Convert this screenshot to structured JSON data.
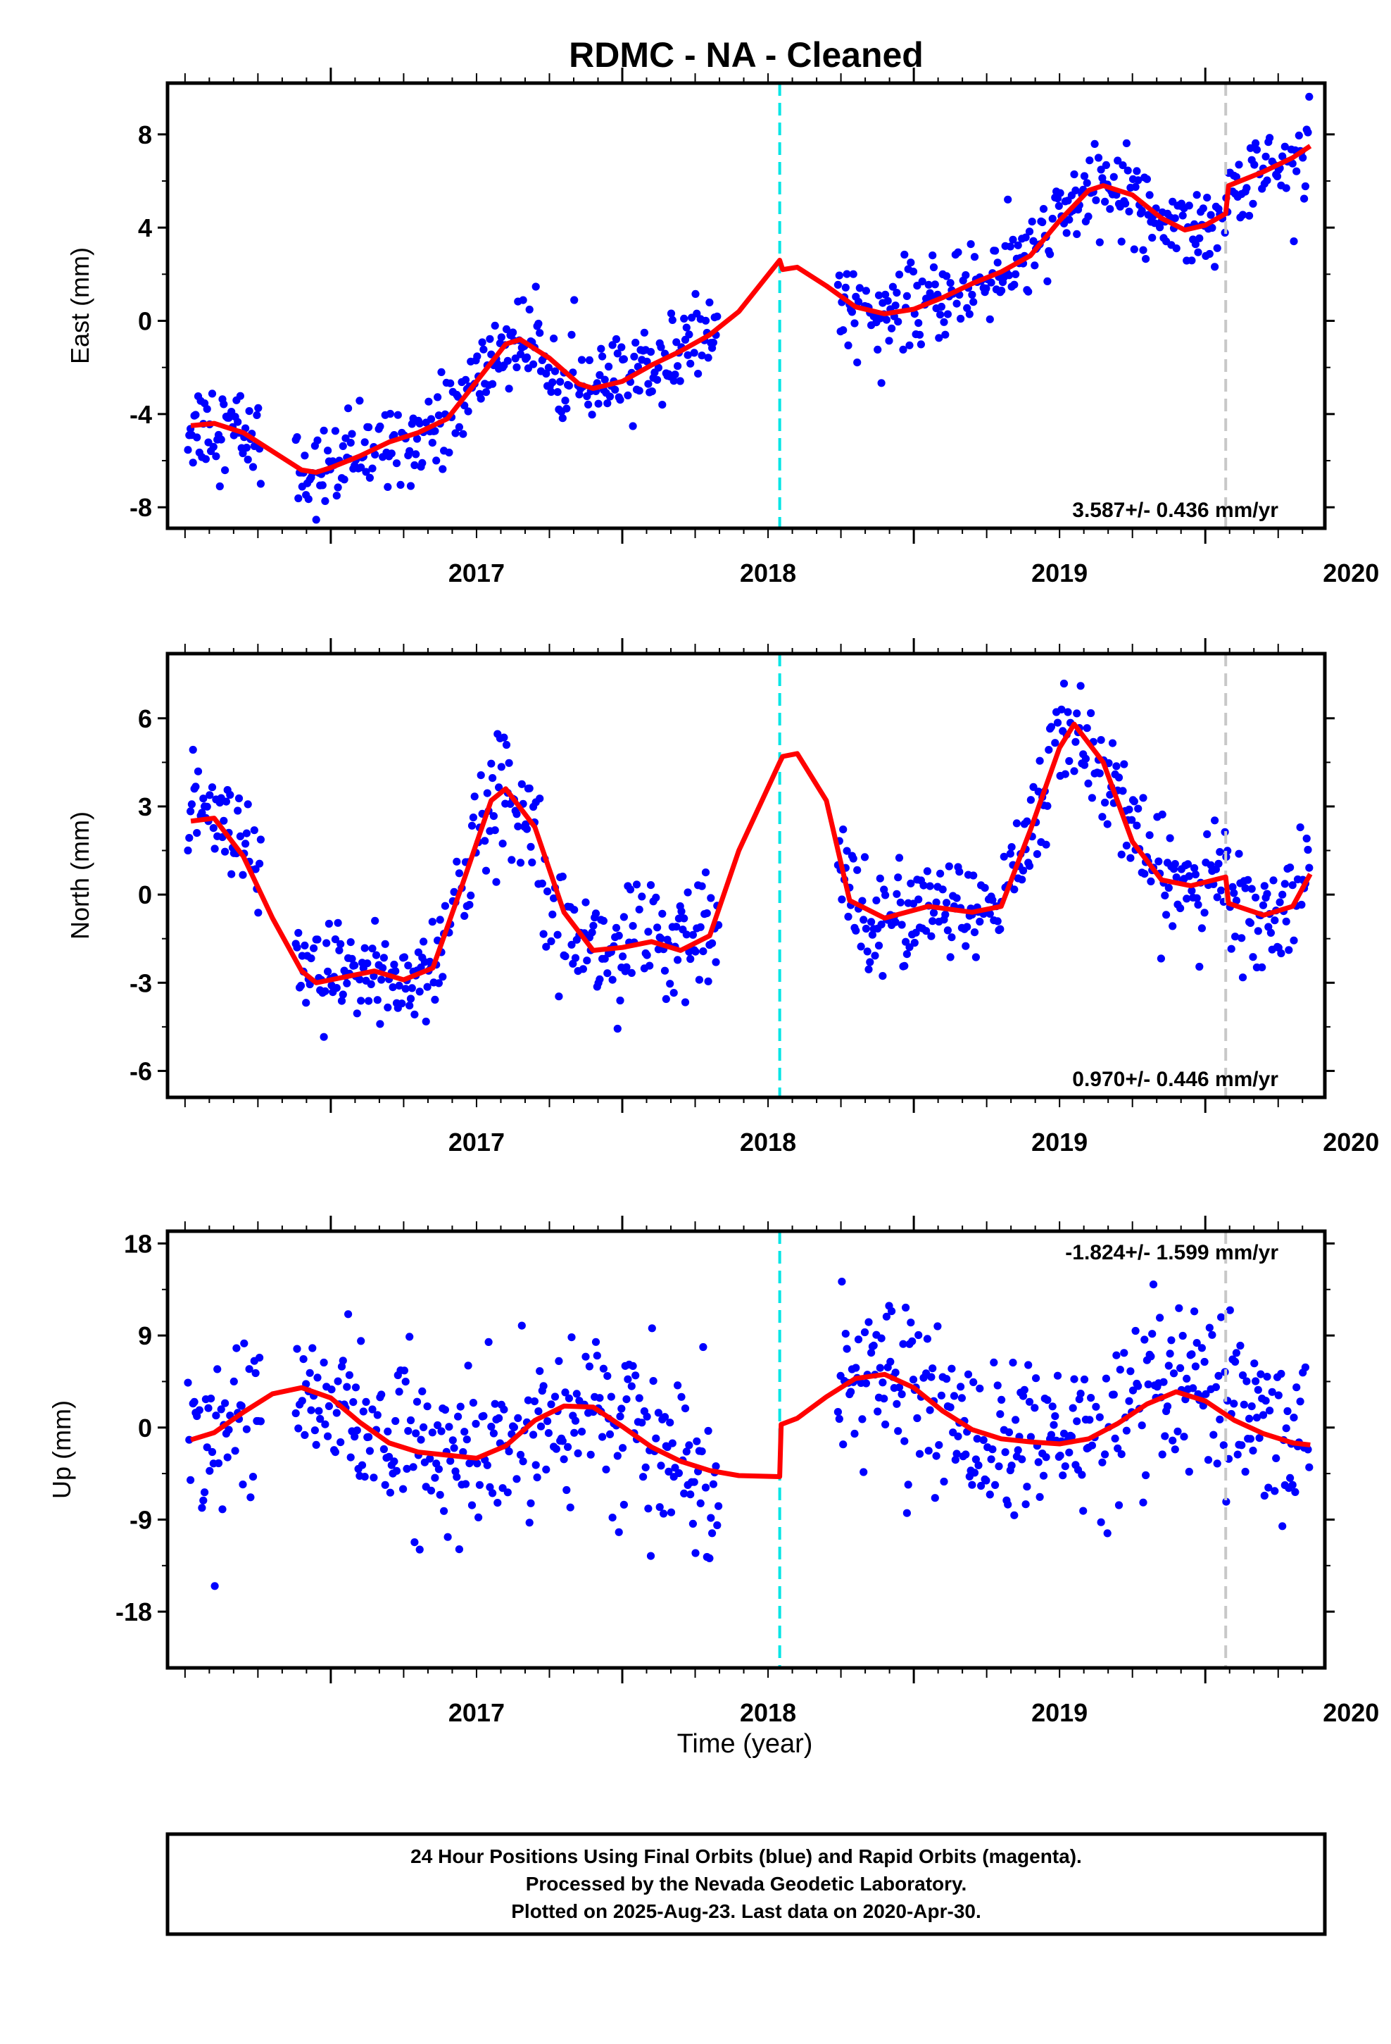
{
  "title": "RDMC  - NA - Cleaned",
  "xlabel": "Time (year)",
  "colors": {
    "points": "#0000ff",
    "fit": "#ff0000",
    "antenna_change": "#00e5e5",
    "equipment_change": "#c8c8c8",
    "frame": "#000000"
  },
  "footer": {
    "line1": "24 Hour Positions Using Final Orbits (blue) and Rapid Orbits (magenta).",
    "line2": "Processed by the Nevada Geodetic Laboratory.",
    "line3": "Plotted on 2025-Aug-23. Last data on 2020-Apr-30."
  },
  "chart_data": [
    {
      "type": "scatter",
      "ylabel": "East (mm)",
      "xlim": [
        2016.44,
        2020.41
      ],
      "ylim": [
        -8.9,
        10.2
      ],
      "xticks": [
        "2017",
        "2018",
        "2019",
        "2020"
      ],
      "yticks": [
        "-8",
        "-4",
        "0",
        "4",
        "8"
      ],
      "rate_label": "3.587+/- 0.436 mm/yr",
      "rate_position": "bottom-right",
      "vlines": [
        {
          "x": 2018.54,
          "color": "cyan",
          "style": "dashed"
        },
        {
          "x": 2020.07,
          "color": "gray",
          "style": "dashed"
        }
      ],
      "segments": [
        {
          "x0": 2016.51,
          "x1": 2016.76,
          "y0": -4.8,
          "slope": 0.0,
          "amp": 1.4,
          "scatter": 1.0
        },
        {
          "x0": 2016.88,
          "x1": 2018.33,
          "y0": -7.3,
          "slope": 4.4,
          "amp": 1.1,
          "scatter": 0.9
        },
        {
          "x0": 2018.74,
          "x1": 2020.36,
          "y0": 0.0,
          "slope": 4.3,
          "amp": 1.2,
          "scatter": 0.9
        }
      ],
      "fit": [
        [
          2016.52,
          -4.5
        ],
        [
          2016.6,
          -4.4
        ],
        [
          2016.7,
          -4.8
        ],
        [
          2016.8,
          -5.6
        ],
        [
          2016.9,
          -6.4
        ],
        [
          2016.95,
          -6.5
        ],
        [
          2017.0,
          -6.3
        ],
        [
          2017.1,
          -5.8
        ],
        [
          2017.2,
          -5.2
        ],
        [
          2017.3,
          -4.8
        ],
        [
          2017.4,
          -4.2
        ],
        [
          2017.5,
          -2.6
        ],
        [
          2017.6,
          -1.0
        ],
        [
          2017.65,
          -0.8
        ],
        [
          2017.75,
          -1.6
        ],
        [
          2017.85,
          -2.7
        ],
        [
          2017.9,
          -2.9
        ],
        [
          2018.0,
          -2.6
        ],
        [
          2018.1,
          -1.9
        ],
        [
          2018.2,
          -1.3
        ],
        [
          2018.3,
          -0.6
        ],
        [
          2018.4,
          0.4
        ],
        [
          2018.54,
          2.6
        ],
        [
          2018.55,
          2.2
        ],
        [
          2018.6,
          2.3
        ],
        [
          2018.7,
          1.5
        ],
        [
          2018.8,
          0.6
        ],
        [
          2018.9,
          0.3
        ],
        [
          2019.0,
          0.5
        ],
        [
          2019.1,
          1.0
        ],
        [
          2019.2,
          1.6
        ],
        [
          2019.3,
          2.1
        ],
        [
          2019.4,
          2.8
        ],
        [
          2019.5,
          4.3
        ],
        [
          2019.6,
          5.6
        ],
        [
          2019.65,
          5.8
        ],
        [
          2019.75,
          5.4
        ],
        [
          2019.85,
          4.4
        ],
        [
          2019.93,
          3.9
        ],
        [
          2020.0,
          4.1
        ],
        [
          2020.07,
          4.6
        ],
        [
          2020.08,
          5.8
        ],
        [
          2020.2,
          6.4
        ],
        [
          2020.3,
          7.0
        ],
        [
          2020.36,
          7.5
        ]
      ]
    },
    {
      "type": "scatter",
      "ylabel": "North (mm)",
      "xlim": [
        2016.44,
        2020.41
      ],
      "ylim": [
        -6.9,
        8.2
      ],
      "xticks": [
        "2017",
        "2018",
        "2019",
        "2020"
      ],
      "yticks": [
        "-6",
        "-3",
        "0",
        "3",
        "6"
      ],
      "rate_label": "0.970+/- 0.446 mm/yr",
      "rate_position": "bottom-right",
      "vlines": [
        {
          "x": 2018.54,
          "color": "cyan",
          "style": "dashed"
        },
        {
          "x": 2020.07,
          "color": "gray",
          "style": "dashed"
        }
      ],
      "segments": [
        {
          "x0": 2016.51,
          "x1": 2016.76,
          "scatter": 0.9
        },
        {
          "x0": 2016.88,
          "x1": 2018.33,
          "scatter": 1.0
        },
        {
          "x0": 2018.74,
          "x1": 2020.36,
          "scatter": 0.9
        }
      ],
      "fit": [
        [
          2016.52,
          2.5
        ],
        [
          2016.6,
          2.6
        ],
        [
          2016.7,
          1.3
        ],
        [
          2016.8,
          -0.8
        ],
        [
          2016.9,
          -2.6
        ],
        [
          2016.95,
          -3.0
        ],
        [
          2017.05,
          -2.8
        ],
        [
          2017.15,
          -2.6
        ],
        [
          2017.25,
          -2.9
        ],
        [
          2017.35,
          -2.5
        ],
        [
          2017.45,
          0.3
        ],
        [
          2017.55,
          3.2
        ],
        [
          2017.6,
          3.6
        ],
        [
          2017.7,
          2.3
        ],
        [
          2017.8,
          -0.6
        ],
        [
          2017.9,
          -1.9
        ],
        [
          2018.0,
          -1.8
        ],
        [
          2018.1,
          -1.6
        ],
        [
          2018.2,
          -1.9
        ],
        [
          2018.3,
          -1.4
        ],
        [
          2018.4,
          1.5
        ],
        [
          2018.54,
          4.5
        ],
        [
          2018.55,
          4.7
        ],
        [
          2018.6,
          4.8
        ],
        [
          2018.7,
          3.2
        ],
        [
          2018.78,
          -0.2
        ],
        [
          2018.9,
          -0.8
        ],
        [
          2019.05,
          -0.4
        ],
        [
          2019.2,
          -0.6
        ],
        [
          2019.3,
          -0.4
        ],
        [
          2019.4,
          2.2
        ],
        [
          2019.5,
          5.0
        ],
        [
          2019.55,
          5.8
        ],
        [
          2019.65,
          4.5
        ],
        [
          2019.75,
          1.8
        ],
        [
          2019.85,
          0.5
        ],
        [
          2019.95,
          0.3
        ],
        [
          2020.07,
          0.6
        ],
        [
          2020.08,
          -0.3
        ],
        [
          2020.2,
          -0.7
        ],
        [
          2020.3,
          -0.4
        ],
        [
          2020.36,
          0.7
        ]
      ]
    },
    {
      "type": "scatter",
      "ylabel": "Up (mm)",
      "xlim": [
        2016.44,
        2020.41
      ],
      "ylim": [
        -23.5,
        19.2
      ],
      "xticks": [
        "2017",
        "2018",
        "2019",
        "2020"
      ],
      "yticks": [
        "18",
        "9",
        "0",
        "-9",
        "-18"
      ],
      "rate_label": "-1.824+/- 1.599 mm/yr",
      "rate_position": "top-right",
      "vlines": [
        {
          "x": 2018.54,
          "color": "cyan",
          "style": "dashed"
        },
        {
          "x": 2020.07,
          "color": "gray",
          "style": "dashed"
        }
      ],
      "segments": [
        {
          "x0": 2016.51,
          "x1": 2016.76,
          "scatter": 4.0
        },
        {
          "x0": 2016.88,
          "x1": 2018.33,
          "scatter": 4.0
        },
        {
          "x0": 2018.74,
          "x1": 2020.36,
          "scatter": 4.0
        }
      ],
      "fit": [
        [
          2016.52,
          -1.2
        ],
        [
          2016.6,
          -0.5
        ],
        [
          2016.7,
          1.5
        ],
        [
          2016.8,
          3.3
        ],
        [
          2016.9,
          3.9
        ],
        [
          2017.0,
          2.9
        ],
        [
          2017.1,
          0.5
        ],
        [
          2017.2,
          -1.5
        ],
        [
          2017.3,
          -2.4
        ],
        [
          2017.4,
          -2.7
        ],
        [
          2017.5,
          -3.0
        ],
        [
          2017.6,
          -1.8
        ],
        [
          2017.7,
          0.7
        ],
        [
          2017.8,
          2.1
        ],
        [
          2017.9,
          2.0
        ],
        [
          2018.0,
          0.1
        ],
        [
          2018.1,
          -1.9
        ],
        [
          2018.2,
          -3.3
        ],
        [
          2018.3,
          -4.2
        ],
        [
          2018.4,
          -4.7
        ],
        [
          2018.54,
          -4.8
        ],
        [
          2018.545,
          0.3
        ],
        [
          2018.6,
          0.9
        ],
        [
          2018.7,
          3.0
        ],
        [
          2018.8,
          4.8
        ],
        [
          2018.9,
          5.2
        ],
        [
          2019.0,
          3.9
        ],
        [
          2019.1,
          1.6
        ],
        [
          2019.2,
          -0.2
        ],
        [
          2019.3,
          -1.1
        ],
        [
          2019.4,
          -1.4
        ],
        [
          2019.5,
          -1.6
        ],
        [
          2019.6,
          -1.1
        ],
        [
          2019.7,
          0.4
        ],
        [
          2019.8,
          2.3
        ],
        [
          2019.9,
          3.5
        ],
        [
          2020.0,
          2.6
        ],
        [
          2020.1,
          0.7
        ],
        [
          2020.2,
          -0.6
        ],
        [
          2020.3,
          -1.5
        ],
        [
          2020.36,
          -1.7
        ]
      ]
    }
  ]
}
